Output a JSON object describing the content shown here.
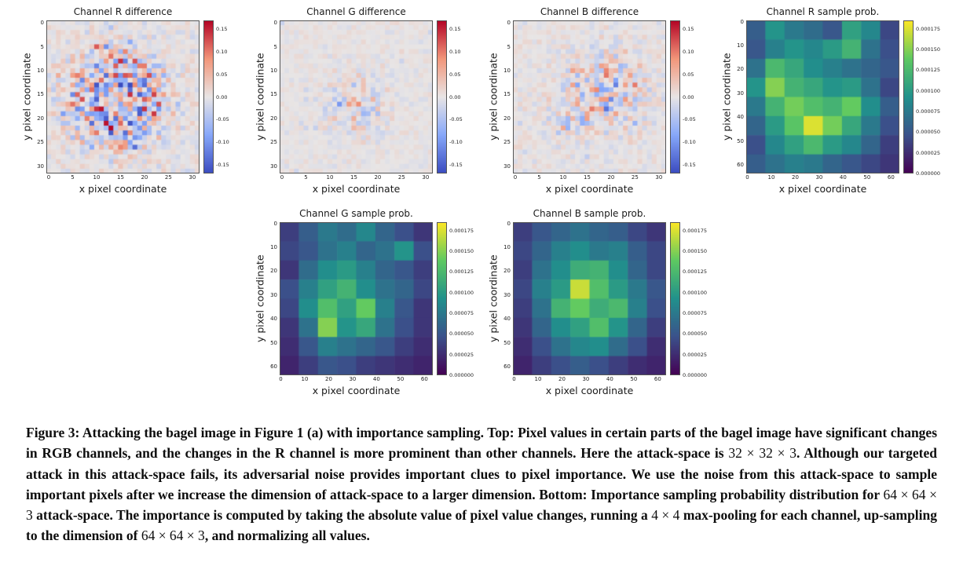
{
  "figure": {
    "caption_parts": [
      {
        "text": "Figure 3: Attacking the bagel image in Figure 1 (a) with importance sampling. Top: Pixel values in certain parts of the bagel image have significant changes in RGB channels, and the changes in the R channel is more prominent than other channels. Here the attack-space is ",
        "math": false
      },
      {
        "text": "32 × 32 × 3",
        "math": true
      },
      {
        "text": ". Although our targeted attack in this attack-space fails, its adversarial noise provides important clues to pixel importance. We use the noise from this attack-space to sample important pixels after we increase the dimension of attack-space to a larger dimension. Bottom: Importance sampling probability distribution for ",
        "math": false
      },
      {
        "text": "64 × 64 × 3",
        "math": true
      },
      {
        "text": " attack-space. The importance is computed by taking the absolute value of pixel value changes, running a ",
        "math": false
      },
      {
        "text": "4 × 4",
        "math": true
      },
      {
        "text": " max-pooling for each channel, up-sampling to the dimension of ",
        "math": false
      },
      {
        "text": "64 × 64 × 3",
        "math": true
      },
      {
        "text": ", and normalizing all values.",
        "math": false
      }
    ]
  },
  "chart_data": [
    {
      "type": "heatmap",
      "title": "Channel R difference",
      "xlabel": "x pixel coordinate",
      "ylabel": "y pixel coordinate",
      "colormap": "coolwarm",
      "grid": 32,
      "domain": 32,
      "vmin": -0.17,
      "vmax": 0.17,
      "x_ticks": [
        0,
        5,
        10,
        15,
        20,
        25,
        30
      ],
      "y_ticks": [
        0,
        5,
        10,
        15,
        20,
        25,
        30
      ],
      "colorbar_ticks": [
        "0.15",
        "0.10",
        "0.05",
        "0.00",
        "-0.05",
        "-0.10",
        "-0.15"
      ],
      "pattern": {
        "seed": 42,
        "base": 0.018,
        "blobs": [
          {
            "cx": 14,
            "cy": 16,
            "ring": 5.5,
            "sigma": 3.5,
            "strength": 0.11
          }
        ]
      }
    },
    {
      "type": "heatmap",
      "title": "Channel G difference",
      "xlabel": "x pixel coordinate",
      "ylabel": "y pixel coordinate",
      "colormap": "coolwarm",
      "grid": 32,
      "domain": 32,
      "vmin": -0.17,
      "vmax": 0.17,
      "x_ticks": [
        0,
        5,
        10,
        15,
        20,
        25,
        30
      ],
      "y_ticks": [
        0,
        5,
        10,
        15,
        20,
        25,
        30
      ],
      "colorbar_ticks": [
        "0.15",
        "0.10",
        "0.05",
        "0.00",
        "-0.05",
        "-0.10",
        "-0.15"
      ],
      "pattern": {
        "seed": 7,
        "base": 0.01,
        "blobs": [
          {
            "cx": 16,
            "cy": 17,
            "ring": 0,
            "sigma": 4,
            "strength": 0.055
          }
        ]
      }
    },
    {
      "type": "heatmap",
      "title": "Channel B difference",
      "xlabel": "x pixel coordinate",
      "ylabel": "y pixel coordinate",
      "colormap": "coolwarm",
      "grid": 32,
      "domain": 32,
      "vmin": -0.17,
      "vmax": 0.17,
      "x_ticks": [
        0,
        5,
        10,
        15,
        20,
        25,
        30
      ],
      "y_ticks": [
        0,
        5,
        10,
        15,
        20,
        25,
        30
      ],
      "colorbar_ticks": [
        "0.15",
        "0.10",
        "0.05",
        "0.00",
        "-0.05",
        "-0.10",
        "-0.15"
      ],
      "pattern": {
        "seed": 99,
        "base": 0.014,
        "blobs": [
          {
            "cx": 19,
            "cy": 14,
            "ring": 0,
            "sigma": 5,
            "strength": 0.075
          },
          {
            "cx": 12,
            "cy": 20,
            "ring": 0,
            "sigma": 3,
            "strength": 0.04
          }
        ]
      }
    },
    {
      "type": "heatmap",
      "title": "Channel R sample prob.",
      "xlabel": "x pixel coordinate",
      "ylabel": "y pixel coordinate",
      "colormap": "viridis",
      "grid": 8,
      "domain": 64,
      "vmin": 0,
      "vmax": 0.000185,
      "value_scale": 1e-06,
      "x_ticks": [
        0,
        10,
        20,
        30,
        40,
        50,
        60
      ],
      "y_ticks": [
        0,
        10,
        20,
        30,
        40,
        50,
        60
      ],
      "colorbar_ticks": [
        "0.000175",
        "0.000150",
        "0.000125",
        "0.000100",
        "0.000075",
        "0.000050",
        "0.000025",
        "0.000000"
      ],
      "values": [
        [
          55,
          95,
          75,
          65,
          50,
          105,
          85,
          40
        ],
        [
          50,
          80,
          95,
          85,
          100,
          120,
          70,
          45
        ],
        [
          70,
          125,
          110,
          90,
          80,
          70,
          60,
          50
        ],
        [
          95,
          150,
          120,
          110,
          95,
          100,
          70,
          40
        ],
        [
          75,
          120,
          145,
          130,
          120,
          140,
          90,
          55
        ],
        [
          60,
          100,
          135,
          175,
          145,
          110,
          75,
          45
        ],
        [
          45,
          85,
          105,
          125,
          100,
          85,
          60,
          35
        ],
        [
          55,
          70,
          80,
          75,
          60,
          50,
          40,
          30
        ]
      ]
    },
    {
      "type": "heatmap",
      "title": "Channel G sample prob.",
      "xlabel": "x pixel coordinate",
      "ylabel": "y pixel coordinate",
      "colormap": "viridis",
      "grid": 8,
      "domain": 64,
      "vmin": 0,
      "vmax": 0.000185,
      "value_scale": 1e-06,
      "x_ticks": [
        0,
        10,
        20,
        30,
        40,
        50,
        60
      ],
      "y_ticks": [
        0,
        10,
        20,
        30,
        40,
        50,
        60
      ],
      "colorbar_ticks": [
        "0.000175",
        "0.000150",
        "0.000125",
        "0.000100",
        "0.000075",
        "0.000050",
        "0.000025",
        "0.000000"
      ],
      "values": [
        [
          35,
          55,
          75,
          65,
          85,
          60,
          45,
          30
        ],
        [
          40,
          50,
          70,
          80,
          60,
          70,
          95,
          45
        ],
        [
          30,
          65,
          90,
          100,
          80,
          60,
          50,
          35
        ],
        [
          45,
          80,
          105,
          120,
          90,
          70,
          60,
          40
        ],
        [
          40,
          90,
          130,
          105,
          140,
          80,
          50,
          30
        ],
        [
          30,
          70,
          150,
          95,
          110,
          70,
          45,
          30
        ],
        [
          25,
          50,
          80,
          70,
          60,
          50,
          35,
          25
        ],
        [
          20,
          35,
          50,
          45,
          35,
          30,
          25,
          20
        ]
      ]
    },
    {
      "type": "heatmap",
      "title": "Channel B sample prob.",
      "xlabel": "x pixel coordinate",
      "ylabel": "y pixel coordinate",
      "colormap": "viridis",
      "grid": 8,
      "domain": 64,
      "vmin": 0,
      "vmax": 0.000185,
      "value_scale": 1e-06,
      "x_ticks": [
        0,
        10,
        20,
        30,
        40,
        50,
        60
      ],
      "y_ticks": [
        0,
        10,
        20,
        30,
        40,
        50,
        60
      ],
      "colorbar_ticks": [
        "0.000175",
        "0.000150",
        "0.000125",
        "0.000100",
        "0.000075",
        "0.000050",
        "0.000025",
        "0.000000"
      ],
      "values": [
        [
          35,
          50,
          60,
          70,
          60,
          55,
          40,
          30
        ],
        [
          40,
          60,
          80,
          90,
          75,
          80,
          55,
          40
        ],
        [
          35,
          70,
          90,
          115,
          120,
          90,
          60,
          40
        ],
        [
          40,
          80,
          100,
          170,
          130,
          100,
          75,
          50
        ],
        [
          35,
          70,
          120,
          140,
          115,
          125,
          80,
          45
        ],
        [
          30,
          60,
          90,
          105,
          130,
          95,
          60,
          35
        ],
        [
          25,
          45,
          70,
          85,
          90,
          65,
          45,
          25
        ],
        [
          20,
          35,
          45,
          55,
          45,
          35,
          25,
          20
        ]
      ]
    }
  ],
  "colors": {
    "coolwarm_low": "#3b4cc0",
    "coolwarm_mid": "#e8e5e5",
    "coolwarm_high": "#b40426",
    "viridis_low": "#440154",
    "viridis_high": "#fde725"
  }
}
